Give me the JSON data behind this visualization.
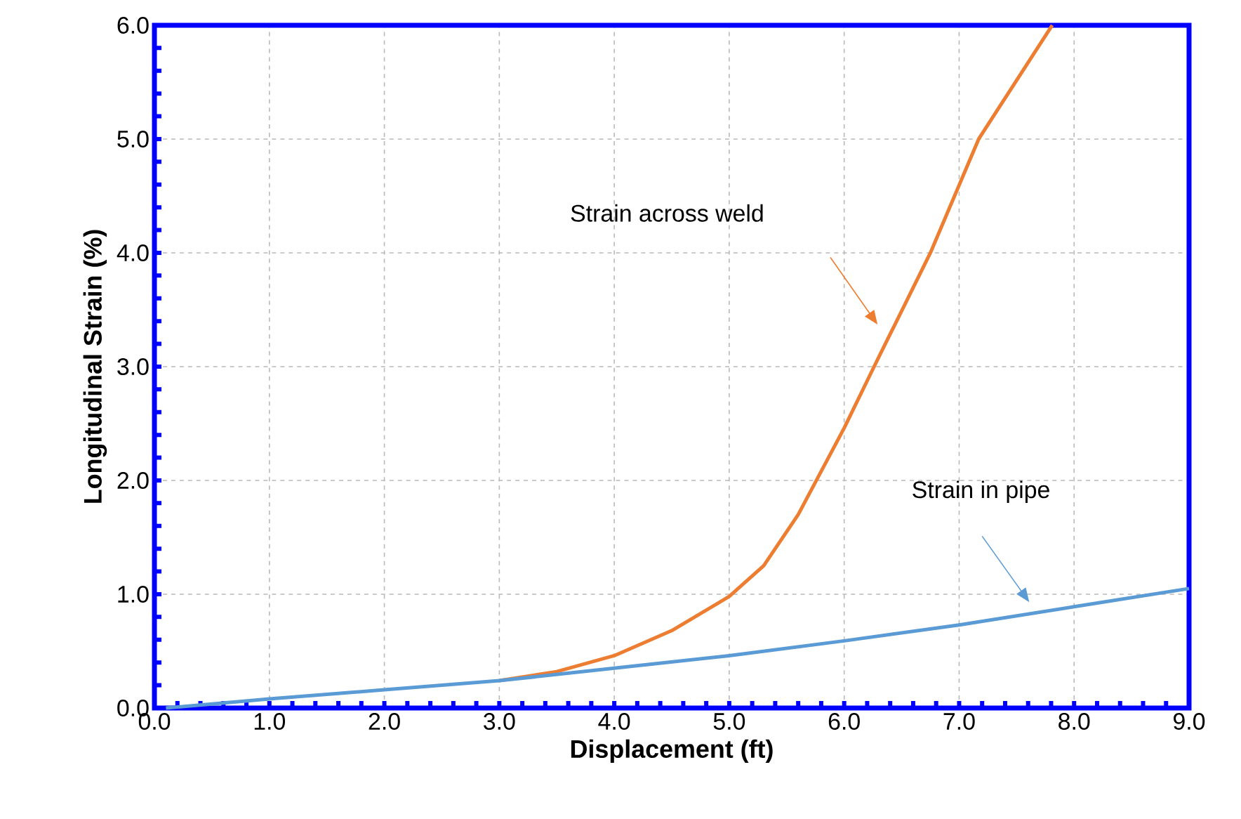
{
  "chart_data": {
    "type": "line",
    "xlabel": "Displacement (ft)",
    "ylabel": "Longitudinal Strain (%)",
    "series": [
      {
        "color": "#ed7d31",
        "x": [
          3.0,
          3.5,
          4.0,
          4.5,
          5.0,
          5.3,
          5.6,
          6.0,
          6.26,
          6.75,
          7.17,
          7.81
        ],
        "values": [
          0.24,
          0.32,
          0.46,
          0.68,
          0.98,
          1.25,
          1.7,
          2.46,
          3.0,
          4.0,
          5.0,
          6.0
        ]
      },
      {
        "color": "#5b9bd5",
        "x": [
          0.1,
          1.0,
          2.0,
          3.0,
          4.0,
          5.0,
          6.0,
          7.0,
          8.0,
          9.0
        ],
        "values": [
          0.0,
          0.08,
          0.16,
          0.24,
          0.35,
          0.46,
          0.59,
          0.73,
          0.89,
          1.05
        ]
      }
    ],
    "annotations": [
      "Strain across weld",
      "Strain in pipe"
    ],
    "xlim": [
      0,
      9
    ],
    "ylim": [
      0,
      6
    ],
    "xticks": [
      {
        "value": 0,
        "label": "0.0"
      },
      {
        "value": 1,
        "label": "1.0"
      },
      {
        "value": 2,
        "label": "2.0"
      },
      {
        "value": 3,
        "label": "3.0"
      },
      {
        "value": 4,
        "label": "4.0"
      },
      {
        "value": 5,
        "label": "5.0"
      },
      {
        "value": 6,
        "label": "6.0"
      },
      {
        "value": 7,
        "label": "7.0"
      },
      {
        "value": 8,
        "label": "8.0"
      },
      {
        "value": 9,
        "label": "9.0"
      }
    ],
    "yticks": [
      {
        "value": 0,
        "label": "0.0"
      },
      {
        "value": 1,
        "label": "1.0"
      },
      {
        "value": 2,
        "label": "2.0"
      },
      {
        "value": 3,
        "label": "3.0"
      },
      {
        "value": 4,
        "label": "4.0"
      },
      {
        "value": 5,
        "label": "5.0"
      },
      {
        "value": 6,
        "label": "6.0"
      }
    ],
    "grid": true,
    "marker": "none",
    "line_style": "solid"
  }
}
